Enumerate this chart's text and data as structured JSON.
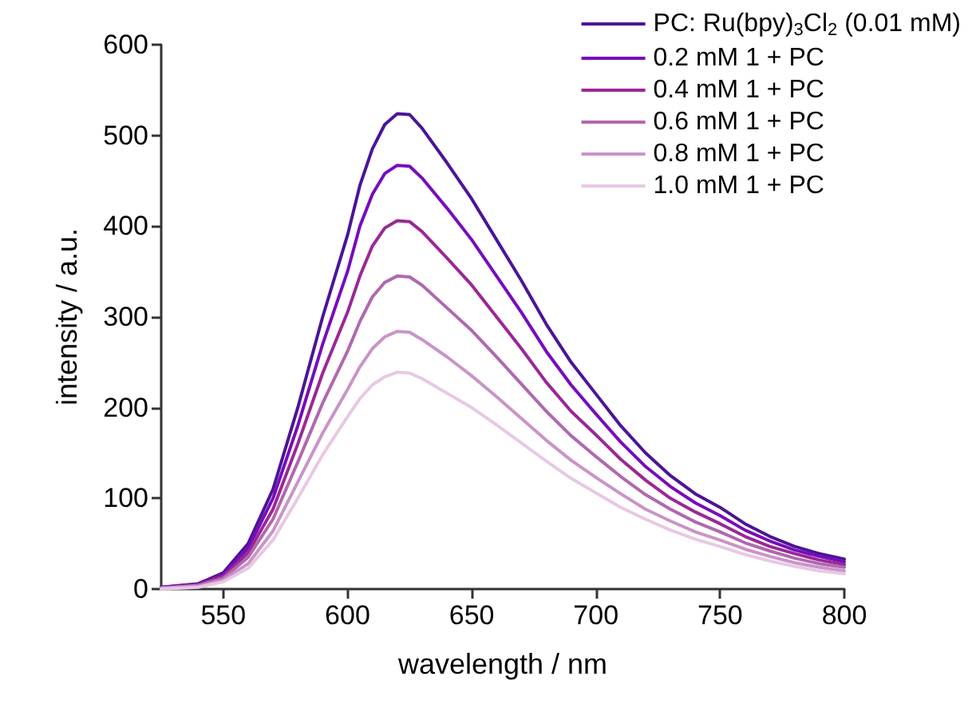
{
  "chart_data": {
    "type": "line",
    "xlabel": "wavelength / nm",
    "ylabel": "intensity / a.u.",
    "x": [
      525,
      540,
      550,
      560,
      570,
      580,
      590,
      600,
      605,
      610,
      615,
      620,
      625,
      630,
      640,
      650,
      660,
      670,
      680,
      690,
      700,
      710,
      720,
      730,
      740,
      750,
      760,
      770,
      780,
      790,
      800
    ],
    "series": [
      {
        "name": "PC: Ru(bpy)$_{3}$Cl$_{2}$ (0.01 mM)",
        "color": "#4b1596",
        "values": [
          2,
          6,
          18,
          50,
          110,
          200,
          300,
          390,
          445,
          485,
          512,
          524,
          523,
          508,
          470,
          430,
          385,
          340,
          292,
          250,
          215,
          180,
          150,
          125,
          105,
          90,
          72,
          58,
          47,
          39,
          33
        ]
      },
      {
        "name": "0.2 mM 1 + PC",
        "color": "#780cbc",
        "values": [
          2,
          5,
          16,
          45,
          100,
          180,
          270,
          350,
          400,
          435,
          458,
          467,
          466,
          453,
          420,
          385,
          345,
          305,
          262,
          225,
          193,
          162,
          135,
          113,
          95,
          81,
          65,
          53,
          43,
          36,
          30
        ]
      },
      {
        "name": "0.4 mM 1 + PC",
        "color": "#9a2896",
        "values": [
          1,
          5,
          14,
          40,
          88,
          160,
          238,
          305,
          345,
          378,
          398,
          406,
          405,
          394,
          365,
          335,
          300,
          265,
          228,
          196,
          170,
          143,
          120,
          100,
          85,
          72,
          58,
          47,
          39,
          32,
          27
        ]
      },
      {
        "name": "0.6 mM 1 + PC",
        "color": "#b068ae",
        "values": [
          1,
          4,
          12,
          35,
          77,
          140,
          205,
          262,
          295,
          322,
          338,
          345,
          344,
          335,
          310,
          285,
          256,
          226,
          196,
          169,
          146,
          124,
          104,
          88,
          74,
          63,
          51,
          42,
          34,
          28,
          24
        ]
      },
      {
        "name": "0.8 mM 1 + PC",
        "color": "#c994c8",
        "values": [
          1,
          3,
          10,
          28,
          64,
          118,
          172,
          220,
          245,
          265,
          278,
          284,
          283,
          275,
          256,
          235,
          212,
          188,
          164,
          142,
          123,
          105,
          88,
          75,
          63,
          54,
          44,
          36,
          29,
          24,
          20
        ]
      },
      {
        "name": "1.0 mM 1 + PC",
        "color": "#e8c8e4",
        "values": [
          0,
          2,
          8,
          23,
          54,
          100,
          148,
          190,
          210,
          225,
          234,
          239,
          238,
          232,
          216,
          200,
          181,
          161,
          141,
          122,
          106,
          90,
          77,
          65,
          55,
          47,
          38,
          31,
          25,
          20,
          17
        ]
      }
    ],
    "xlim": [
      525,
      800
    ],
    "xticks": [
      550,
      600,
      650,
      700,
      750,
      800
    ],
    "ylim": [
      0,
      600
    ],
    "yticks": [
      0,
      100,
      200,
      300,
      400,
      500,
      600
    ],
    "grid": false,
    "legend": "top right",
    "marker": "none",
    "line_style": "solid"
  }
}
